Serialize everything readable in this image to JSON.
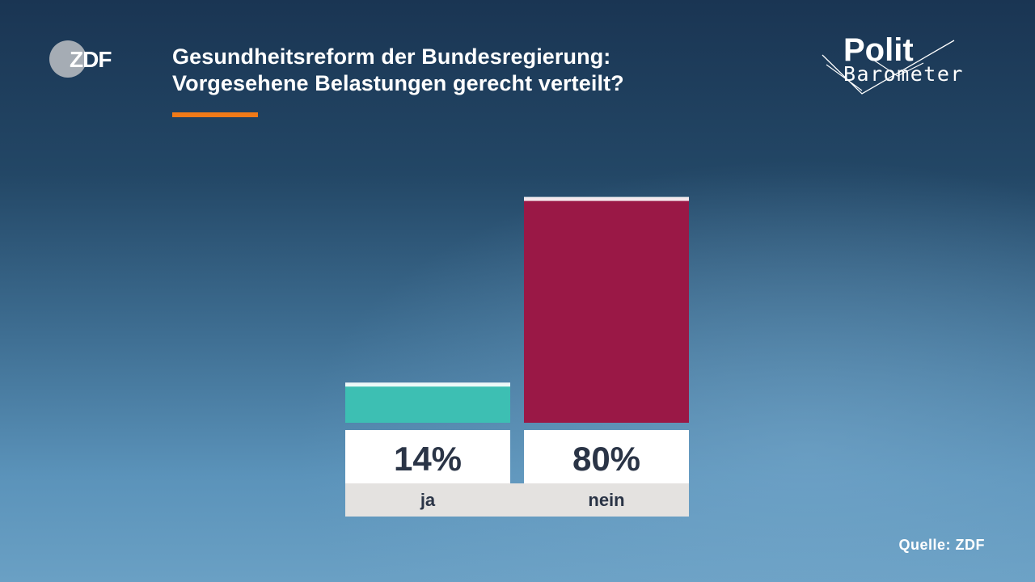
{
  "branding": {
    "broadcaster": "ZDF",
    "show_line1": "Polit",
    "show_line2": "Barometer"
  },
  "colors": {
    "accent": "#f07a18",
    "value_text": "#2a3446",
    "label_bg": "#e4e2e0"
  },
  "chart_data": {
    "type": "bar",
    "title": "Gesundheitsreform der Bundesregierung: Vorgesehene Belastungen gerecht verteilt?",
    "title_lines": [
      "Gesundheitsreform der Bundesregierung:",
      "Vorgesehene Belastungen gerecht verteilt?"
    ],
    "categories": [
      "ja",
      "nein"
    ],
    "values": [
      14,
      80
    ],
    "value_labels": [
      "14%",
      "80%"
    ],
    "colors": [
      "#3dbfb3",
      "#9a1846"
    ],
    "unit": "%",
    "ylim": [
      0,
      100
    ],
    "grid": false,
    "legend": "none"
  },
  "source": "Quelle: ZDF"
}
